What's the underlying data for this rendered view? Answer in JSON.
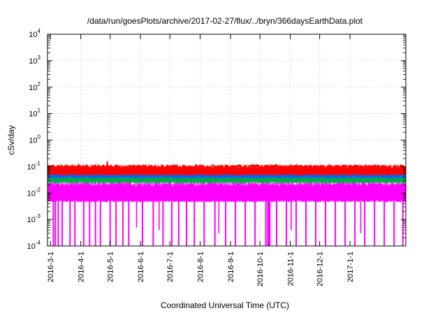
{
  "chart_data": {
    "type": "line",
    "title": "/data/run/goesPlots/archive/2017-02-27/flux/../bryn/366daysEarthData.plot",
    "xlabel": "Coordinated Universal Time (UTC)",
    "ylabel": "cSv/day",
    "y_scale": "log",
    "ylim": [
      0.0001,
      10000
    ],
    "xlim": [
      "2016-02-27",
      "2017-02-27"
    ],
    "y_ticks": [
      {
        "base": "10",
        "exp": "-4",
        "value": 0.0001
      },
      {
        "base": "10",
        "exp": "-3",
        "value": 0.001
      },
      {
        "base": "10",
        "exp": "-2",
        "value": 0.01
      },
      {
        "base": "10",
        "exp": "-1",
        "value": 0.1
      },
      {
        "base": "10",
        "exp": "0",
        "value": 1
      },
      {
        "base": "10",
        "exp": "1",
        "value": 10
      },
      {
        "base": "10",
        "exp": "2",
        "value": 100
      },
      {
        "base": "10",
        "exp": "3",
        "value": 1000
      },
      {
        "base": "10",
        "exp": "4",
        "value": 10000
      }
    ],
    "x_ticks": [
      {
        "label": "2016-3-1",
        "date": "2016-03-01"
      },
      {
        "label": "2016-4-1",
        "date": "2016-04-01"
      },
      {
        "label": "2016-5-1",
        "date": "2016-05-01"
      },
      {
        "label": "2016-6-1",
        "date": "2016-06-01"
      },
      {
        "label": "2016-7-1",
        "date": "2016-07-01"
      },
      {
        "label": "2016-8-1",
        "date": "2016-08-01"
      },
      {
        "label": "2016-9-1",
        "date": "2016-09-01"
      },
      {
        "label": "2016-10-1",
        "date": "2016-10-01"
      },
      {
        "label": "2016-11-1",
        "date": "2016-11-01"
      },
      {
        "label": "2016-12-1",
        "date": "2016-12-01"
      },
      {
        "label": "2017-1-1",
        "date": "2017-01-01"
      }
    ],
    "grid": true,
    "legend": "none",
    "series": [
      {
        "color": "#ff0000",
        "typical": 0.09,
        "spikes": [
          {
            "date": "2016-04-28",
            "value": 0.16
          }
        ]
      },
      {
        "color": "#0066ff",
        "typical": 0.07
      },
      {
        "color": "#00aa44",
        "typical": 0.045
      },
      {
        "color": "#ff00ff",
        "typical": 0.02,
        "floor": 0.005
      }
    ],
    "dropouts_to_axis": [
      "2016-03-04",
      "2016-03-06",
      "2016-03-09",
      "2016-03-13",
      "2016-03-21",
      "2016-03-26",
      "2016-04-04",
      "2016-04-10",
      "2016-04-16",
      "2016-04-21",
      "2016-05-01",
      "2016-05-07",
      "2016-05-14",
      "2016-05-20",
      "2016-06-03",
      "2016-06-14",
      "2016-06-24",
      "2016-07-03",
      "2016-07-10",
      "2016-07-18",
      "2016-07-26",
      "2016-08-05",
      "2016-08-16",
      "2016-08-27",
      "2016-09-06",
      "2016-09-16",
      "2016-09-26",
      "2016-10-07",
      "2016-10-09",
      "2016-10-10",
      "2016-10-11",
      "2016-10-18",
      "2016-10-28",
      "2016-11-07",
      "2016-11-17",
      "2016-11-27",
      "2016-12-07",
      "2016-12-17",
      "2016-12-27",
      "2017-01-06",
      "2017-01-16",
      "2017-01-26",
      "2017-02-05",
      "2017-02-15",
      "2017-02-24"
    ],
    "dropouts_partial": [
      {
        "date": "2016-05-28",
        "value": 0.0005
      },
      {
        "date": "2016-06-20",
        "value": 0.0004
      },
      {
        "date": "2016-08-20",
        "value": 0.0003
      },
      {
        "date": "2016-11-02",
        "value": 0.0004
      },
      {
        "date": "2017-01-12",
        "value": 0.0003
      }
    ]
  }
}
